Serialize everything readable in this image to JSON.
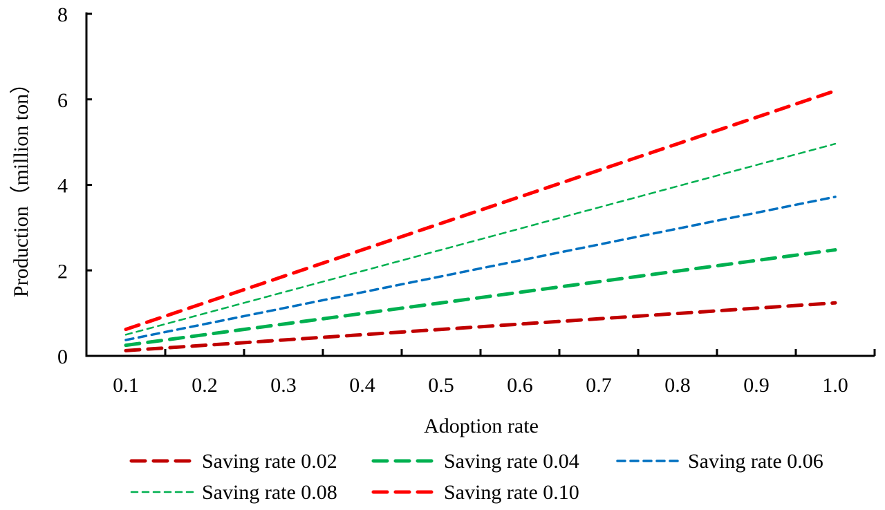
{
  "chart_data": {
    "type": "line",
    "title": "",
    "xlabel": "Adoption rate",
    "ylabel": "Production（million ton）",
    "categories": [
      "0.1",
      "0.2",
      "0.3",
      "0.4",
      "0.5",
      "0.6",
      "0.7",
      "0.8",
      "0.9",
      "1.0"
    ],
    "ylim": [
      0,
      8
    ],
    "yticks": [
      "0",
      "2",
      "4",
      "6",
      "8"
    ],
    "grid": false,
    "legend_position": "bottom",
    "series": [
      {
        "name": "Saving rate 0.02",
        "color": "#C00000",
        "style": "long-dash-thick",
        "values": [
          0.124,
          0.248,
          0.372,
          0.496,
          0.62,
          0.744,
          0.868,
          0.992,
          1.116,
          1.24
        ]
      },
      {
        "name": "Saving rate 0.04",
        "color": "#00B050",
        "style": "long-dash-thick",
        "values": [
          0.248,
          0.496,
          0.744,
          0.992,
          1.24,
          1.488,
          1.736,
          1.984,
          2.232,
          2.48
        ]
      },
      {
        "name": "Saving rate 0.06",
        "color": "#0070C0",
        "style": "dash",
        "values": [
          0.372,
          0.744,
          1.116,
          1.488,
          1.86,
          2.232,
          2.604,
          2.976,
          3.348,
          3.72
        ]
      },
      {
        "name": "Saving rate 0.08",
        "color": "#00B050",
        "style": "dash-thin",
        "values": [
          0.496,
          0.992,
          1.488,
          1.984,
          2.48,
          2.976,
          3.472,
          3.968,
          4.464,
          4.96
        ]
      },
      {
        "name": "Saving rate 0.10",
        "color": "#FF0000",
        "style": "long-dash-thick",
        "values": [
          0.62,
          1.24,
          1.86,
          2.48,
          3.1,
          3.72,
          4.34,
          4.96,
          5.58,
          6.2
        ]
      }
    ]
  }
}
